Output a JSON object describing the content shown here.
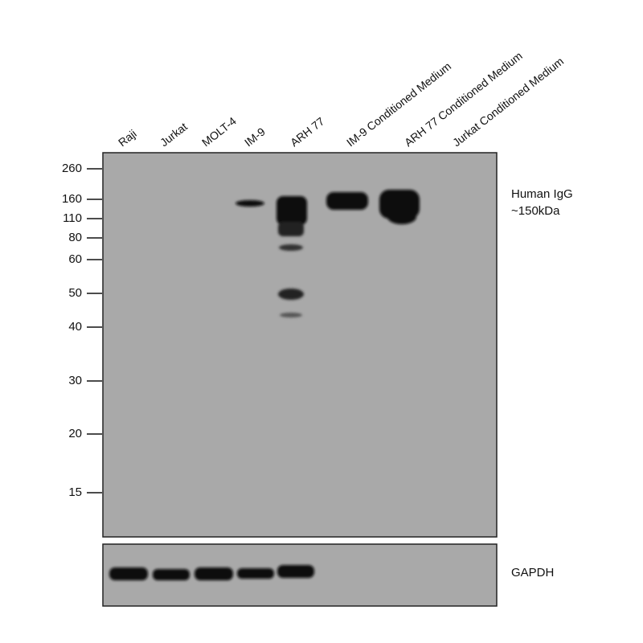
{
  "lanes": [
    "Raji",
    "Jurkat",
    "MOLT-4",
    "IM-9",
    "ARH 77",
    "IM-9 Conditioned Medium",
    "ARH 77 Conditioned Medium",
    "Jurkat Conditioned Medium"
  ],
  "markers": [
    260,
    160,
    110,
    80,
    60,
    50,
    40,
    30,
    20,
    15
  ],
  "annotations": {
    "target": [
      "Human IgG",
      "~150kDa"
    ],
    "loading_control": "GAPDH"
  }
}
